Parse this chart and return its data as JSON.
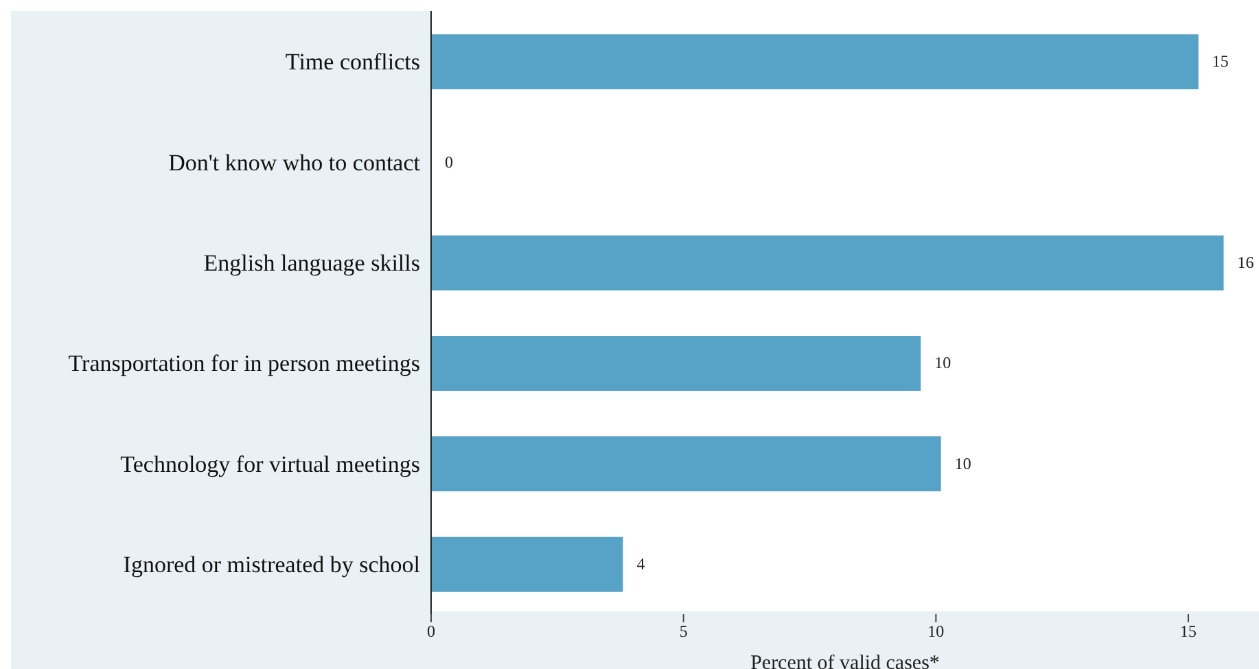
{
  "chart_data": {
    "type": "bar",
    "orientation": "horizontal",
    "xlabel": "Percent of valid cases*",
    "categories": [
      "Time conflicts",
      "Don't know who to contact",
      "English language skills",
      "Transportation for in person meetings",
      "Technology for virtual meetings",
      "Ignored or mistreated by school"
    ],
    "values": [
      15.2,
      0,
      15.7,
      9.7,
      10.1,
      3.8
    ],
    "value_labels": [
      "15",
      "0",
      "16",
      "10",
      "10",
      "4"
    ],
    "color": "#57a3c8",
    "xlim": [
      0,
      16.4
    ],
    "xticks": [
      0,
      5,
      10,
      15
    ],
    "grid": false
  }
}
